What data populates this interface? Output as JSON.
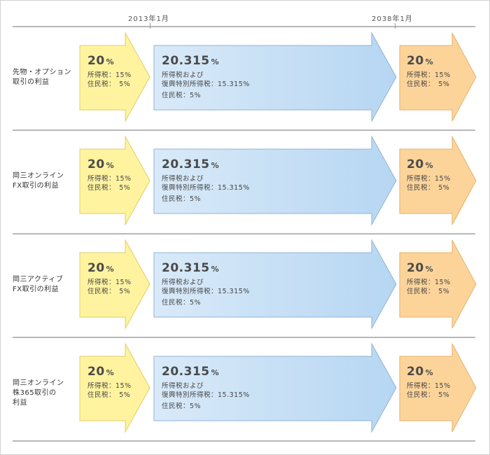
{
  "timeline": {
    "start_label": "2013年1月",
    "end_label": "2038年1月"
  },
  "rows": [
    {
      "label_line1": "先物・オプション",
      "label_line2": "取引の利益",
      "label_line3": "",
      "before": {
        "rate": "20",
        "unit": "%",
        "line1": "所得税：15%",
        "line2": "住民税：　5%"
      },
      "during": {
        "rate": "20.315",
        "unit": "%",
        "line1": "所得税および",
        "line2": "復興特別所得税：15.315%",
        "line3": "住民税：5%"
      },
      "after": {
        "rate": "20",
        "unit": "%",
        "line1": "所得税：15%",
        "line2": "住民税：　5%"
      }
    },
    {
      "label_line1": "岡三オンライン",
      "label_line2": "FX取引の利益",
      "label_line3": "",
      "before": {
        "rate": "20",
        "unit": "%",
        "line1": "所得税：15%",
        "line2": "住民税：　5%"
      },
      "during": {
        "rate": "20.315",
        "unit": "%",
        "line1": "所得税および",
        "line2": "復興特別所得税：15.315%",
        "line3": "住民税：5%"
      },
      "after": {
        "rate": "20",
        "unit": "%",
        "line1": "所得税：15%",
        "line2": "住民税：　5%"
      }
    },
    {
      "label_line1": "岡三アクティブ",
      "label_line2": "FX取引の利益",
      "label_line3": "",
      "before": {
        "rate": "20",
        "unit": "%",
        "line1": "所得税：15%",
        "line2": "住民税：　5%"
      },
      "during": {
        "rate": "20.315",
        "unit": "%",
        "line1": "所得税および",
        "line2": "復興特別所得税：15.315%",
        "line3": "住民税：5%"
      },
      "after": {
        "rate": "20",
        "unit": "%",
        "line1": "所得税：15%",
        "line2": "住民税：　5%"
      }
    },
    {
      "label_line1": "岡三オンライン",
      "label_line2": "株365取引の",
      "label_line3": "利益",
      "before": {
        "rate": "20",
        "unit": "%",
        "line1": "所得税：15%",
        "line2": "住民税：　5%"
      },
      "during": {
        "rate": "20.315",
        "unit": "%",
        "line1": "所得税および",
        "line2": "復興特別所得税：15.315%",
        "line3": "住民税：5%"
      },
      "after": {
        "rate": "20",
        "unit": "%",
        "line1": "所得税：15%",
        "line2": "住民税：　5%"
      }
    }
  ],
  "colors": {
    "before_fill": "#fff3a0",
    "before_stroke": "#e0cc66",
    "during_fill_start": "#d6e8f8",
    "during_fill_end": "#b9d8f3",
    "during_stroke": "#8fb3d6",
    "after_fill": "#fcd49a",
    "after_stroke": "#e6b06a",
    "rule": "#b8b8b8"
  }
}
